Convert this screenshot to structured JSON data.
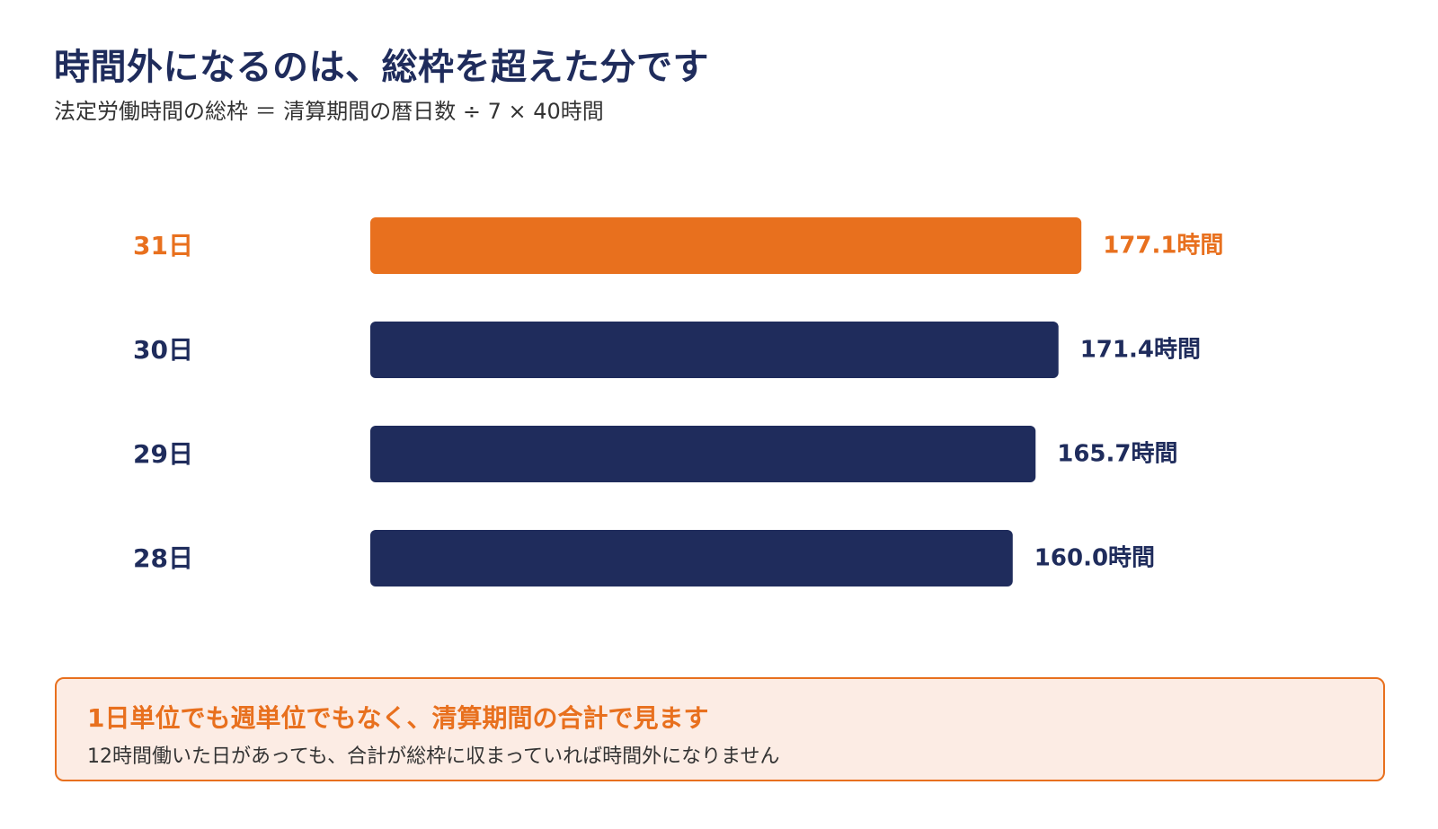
{
  "header": {
    "title": "時間外になるのは、総枠を超えた分です",
    "subtitle": "法定労働時間の総枠 ＝ 清算期間の暦日数 ÷ 7 × 40時間"
  },
  "chart_data": {
    "type": "bar",
    "orientation": "horizontal",
    "categories": [
      "31日",
      "30日",
      "29日",
      "28日"
    ],
    "values": [
      177.1,
      171.4,
      165.7,
      160.0
    ],
    "value_labels": [
      "177.1時間",
      "171.4時間",
      "165.7時間",
      "160.0時間"
    ],
    "highlight_index": 0,
    "colors": {
      "highlight": "#e8701e",
      "default": "#1f2c5c"
    },
    "grid": false,
    "legend": "none"
  },
  "callout": {
    "heading": "1日単位でも週単位でもなく、清算期間の合計で見ます",
    "body": "12時間働いた日があっても、合計が総枠に収まっていれば時間外になりません",
    "border_color": "#e8701e",
    "background_color": "#fcece4"
  }
}
